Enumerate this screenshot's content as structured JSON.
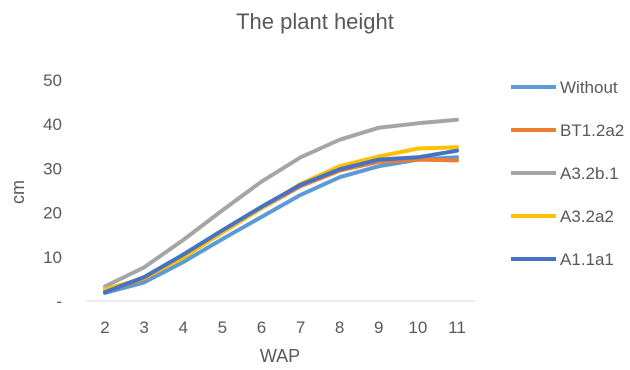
{
  "chart_data": {
    "type": "line",
    "title": "The plant height",
    "xlabel": "WAP",
    "ylabel": "cm",
    "x": [
      2,
      3,
      4,
      5,
      6,
      7,
      8,
      9,
      10,
      11
    ],
    "ylim": [
      0,
      50
    ],
    "yticks": [
      "-",
      "10",
      "20",
      "30",
      "40",
      "50"
    ],
    "grid": false,
    "legend": "right",
    "series": [
      {
        "name": "Without",
        "color": "#5B9BD5",
        "values": [
          1.8,
          4.2,
          8.8,
          14.0,
          19.0,
          24.0,
          28.0,
          30.5,
          32.0,
          32.5
        ]
      },
      {
        "name": "BT1.2a2",
        "color": "#ED7D31",
        "values": [
          2.2,
          5.0,
          10.0,
          15.5,
          21.0,
          26.0,
          29.5,
          31.5,
          32.0,
          31.8
        ]
      },
      {
        "name": "A3.2b.1",
        "color": "#A5A5A5",
        "values": [
          3.3,
          7.6,
          13.8,
          20.5,
          27.0,
          32.5,
          36.5,
          39.2,
          40.2,
          41.0
        ]
      },
      {
        "name": "A3.2a2",
        "color": "#FFC000",
        "values": [
          2.6,
          5.2,
          9.8,
          15.5,
          21.0,
          26.5,
          30.5,
          32.7,
          34.5,
          34.8
        ]
      },
      {
        "name": "A1.1a1",
        "color": "#4472C4",
        "values": [
          2.0,
          5.4,
          10.5,
          16.0,
          21.3,
          26.3,
          29.8,
          32.0,
          32.5,
          34.0
        ]
      }
    ]
  }
}
